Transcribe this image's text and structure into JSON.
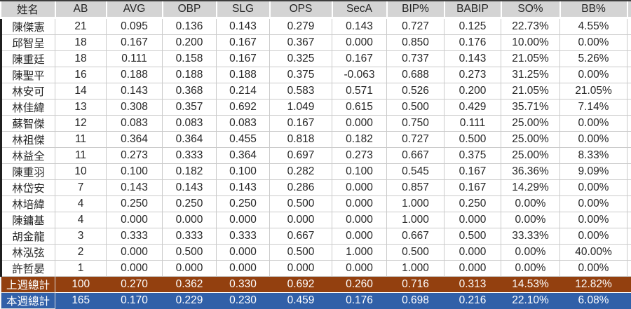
{
  "table": {
    "columns": [
      "姓名",
      "AB",
      "AVG",
      "OBP",
      "SLG",
      "OPS",
      "SecA",
      "BIP%",
      "BABIP",
      "SO%",
      "BB%"
    ],
    "rows": [
      [
        "陳傑憲",
        "21",
        "0.095",
        "0.136",
        "0.143",
        "0.279",
        "0.143",
        "0.727",
        "0.125",
        "22.73%",
        "4.55%"
      ],
      [
        "邱智呈",
        "18",
        "0.167",
        "0.200",
        "0.167",
        "0.367",
        "0.000",
        "0.850",
        "0.176",
        "10.00%",
        "0.00%"
      ],
      [
        "陳重廷",
        "18",
        "0.111",
        "0.158",
        "0.167",
        "0.325",
        "0.167",
        "0.737",
        "0.143",
        "21.05%",
        "5.26%"
      ],
      [
        "陳聖平",
        "16",
        "0.188",
        "0.188",
        "0.188",
        "0.375",
        "-0.063",
        "0.688",
        "0.273",
        "31.25%",
        "0.00%"
      ],
      [
        "林安可",
        "14",
        "0.143",
        "0.368",
        "0.214",
        "0.583",
        "0.571",
        "0.526",
        "0.200",
        "21.05%",
        "21.05%"
      ],
      [
        "林佳緯",
        "13",
        "0.308",
        "0.357",
        "0.692",
        "1.049",
        "0.615",
        "0.500",
        "0.429",
        "35.71%",
        "7.14%"
      ],
      [
        "蘇智傑",
        "12",
        "0.083",
        "0.083",
        "0.083",
        "0.167",
        "0.000",
        "0.750",
        "0.111",
        "25.00%",
        "0.00%"
      ],
      [
        "林祖傑",
        "11",
        "0.364",
        "0.364",
        "0.455",
        "0.818",
        "0.182",
        "0.727",
        "0.500",
        "25.00%",
        "0.00%"
      ],
      [
        "林益全",
        "11",
        "0.273",
        "0.333",
        "0.364",
        "0.697",
        "0.273",
        "0.667",
        "0.375",
        "25.00%",
        "8.33%"
      ],
      [
        "陳重羽",
        "10",
        "0.100",
        "0.182",
        "0.100",
        "0.282",
        "0.100",
        "0.545",
        "0.167",
        "36.36%",
        "9.09%"
      ],
      [
        "林岱安",
        "7",
        "0.143",
        "0.143",
        "0.143",
        "0.286",
        "0.000",
        "0.857",
        "0.167",
        "14.29%",
        "0.00%"
      ],
      [
        "林培緯",
        "4",
        "0.250",
        "0.250",
        "0.250",
        "0.500",
        "0.000",
        "1.000",
        "0.250",
        "0.00%",
        "0.00%"
      ],
      [
        "陳鏞基",
        "4",
        "0.000",
        "0.000",
        "0.000",
        "0.000",
        "0.000",
        "1.000",
        "0.000",
        "0.00%",
        "0.00%"
      ],
      [
        "胡金龍",
        "3",
        "0.333",
        "0.333",
        "0.333",
        "0.667",
        "0.000",
        "0.667",
        "0.500",
        "33.33%",
        "0.00%"
      ],
      [
        "林泓弦",
        "2",
        "0.000",
        "0.500",
        "0.000",
        "0.500",
        "1.000",
        "0.500",
        "0.000",
        "0.00%",
        "40.00%"
      ],
      [
        "許哲晏",
        "1",
        "0.000",
        "0.000",
        "0.000",
        "0.000",
        "0.000",
        "1.000",
        "0.000",
        "0.00%",
        "0.00%"
      ]
    ],
    "summary": [
      {
        "key": "last-week-total",
        "label": "上週總計",
        "values": [
          "100",
          "0.270",
          "0.362",
          "0.330",
          "0.692",
          "0.260",
          "0.716",
          "0.313",
          "14.53%",
          "12.82%"
        ]
      },
      {
        "key": "this-week-total",
        "label": "本週總計",
        "values": [
          "165",
          "0.170",
          "0.229",
          "0.230",
          "0.459",
          "0.176",
          "0.698",
          "0.216",
          "22.10%",
          "6.08%"
        ]
      }
    ]
  },
  "colors": {
    "header_bg": "#d4d4d4",
    "last_week_total_bg": "#93400f",
    "this_week_total_bg": "#3160a8",
    "summary_text": "#ffffff",
    "grid_line": "#cbcbcb",
    "top_strip": "#3d3d3d"
  }
}
